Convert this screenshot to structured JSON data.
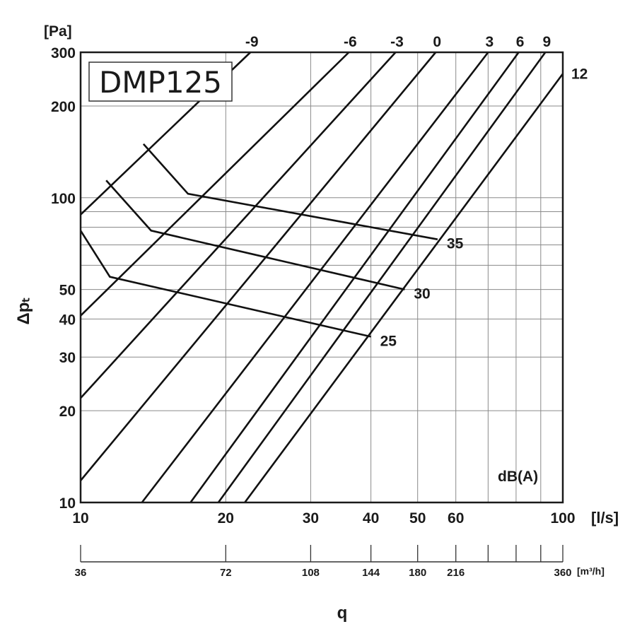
{
  "chart_data": {
    "type": "line",
    "title": "DMP125",
    "xlabel": "q",
    "x_unit": "[l/s]",
    "x2_unit": "[m³/h]",
    "ylabel": "Δpₜ",
    "y_unit": "[Pa]",
    "x_scale": "log",
    "y_scale": "log",
    "xlim": [
      10,
      100
    ],
    "ylim": [
      10,
      300
    ],
    "grid": true,
    "x_ticks": [
      10,
      20,
      30,
      40,
      50,
      60,
      100
    ],
    "x_minor_grid": [
      70,
      80,
      90
    ],
    "y_ticks": [
      10,
      20,
      30,
      40,
      50,
      100,
      200,
      300
    ],
    "y_minor_grid": [
      60,
      70,
      80,
      90
    ],
    "x2_ticks": [
      {
        "q": 10,
        "label": "36"
      },
      {
        "q": 20,
        "label": "72"
      },
      {
        "q": 30,
        "label": "108"
      },
      {
        "q": 40,
        "label": "144"
      },
      {
        "q": 50,
        "label": "180"
      },
      {
        "q": 60,
        "label": "216"
      },
      {
        "q": 100,
        "label": "360"
      }
    ],
    "x2_minor_ticks": [
      70,
      80,
      90
    ],
    "damper_position_unit": "dB(A)",
    "damper_position_series": [
      {
        "label": "-9",
        "points": [
          [
            10,
            88
          ],
          [
            22.5,
            300
          ]
        ]
      },
      {
        "label": "-6",
        "points": [
          [
            10,
            41
          ],
          [
            36,
            300
          ]
        ]
      },
      {
        "label": "-3",
        "points": [
          [
            10,
            22
          ],
          [
            45,
            300
          ]
        ]
      },
      {
        "label": "0",
        "points": [
          [
            10,
            11.8
          ],
          [
            54.5,
            300
          ]
        ]
      },
      {
        "label": "3",
        "points": [
          [
            13.4,
            10
          ],
          [
            70,
            300
          ]
        ]
      },
      {
        "label": "6",
        "points": [
          [
            16.9,
            10
          ],
          [
            81,
            300
          ]
        ]
      },
      {
        "label": "9",
        "points": [
          [
            19.3,
            10
          ],
          [
            92,
            300
          ]
        ]
      },
      {
        "label": "12",
        "points": [
          [
            21.9,
            10
          ],
          [
            100,
            255
          ]
        ]
      }
    ],
    "sound_level_series": [
      {
        "label": "35",
        "points": [
          [
            13.5,
            150
          ],
          [
            16.7,
            103
          ],
          [
            55,
            73
          ]
        ]
      },
      {
        "label": "30",
        "points": [
          [
            11.3,
            114
          ],
          [
            14,
            78
          ],
          [
            47,
            50
          ]
        ]
      },
      {
        "label": "25",
        "points": [
          [
            10,
            78
          ],
          [
            11.5,
            55
          ],
          [
            40,
            35
          ]
        ]
      }
    ]
  }
}
